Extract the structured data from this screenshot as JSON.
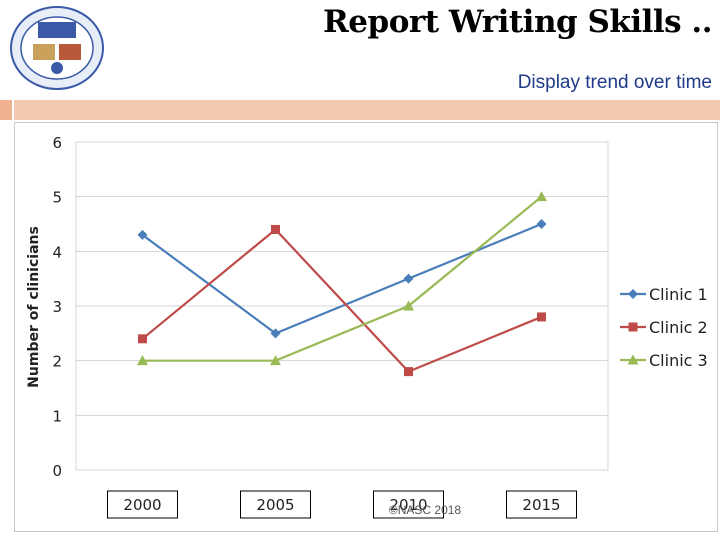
{
  "slide": {
    "title": "Report Writing Skills ..",
    "subtitle": "Display trend over time",
    "copyright": "©NASC 2018"
  },
  "colors": {
    "accent_bar": "#f3c9b0",
    "subtitle": "#1f3a8a"
  },
  "chart_data": {
    "type": "line",
    "categories": [
      "2000",
      "2005",
      "2010",
      "2015"
    ],
    "ylabel": "Number of clinicians",
    "xlabel": "",
    "ylim": [
      0,
      6
    ],
    "yticks": [
      0,
      1,
      2,
      3,
      4,
      5,
      6
    ],
    "grid": "horizontal",
    "legend": "right",
    "series": [
      {
        "name": "Clinic 1",
        "values": [
          4.3,
          2.5,
          3.5,
          4.5
        ],
        "color": "#4a7ebb",
        "marker": "diamond"
      },
      {
        "name": "Clinic 2",
        "values": [
          2.4,
          4.4,
          1.8,
          2.8
        ],
        "color": "#be4b48",
        "marker": "square"
      },
      {
        "name": "Clinic 3",
        "values": [
          2.0,
          2.0,
          3.0,
          5.0
        ],
        "color": "#98b954",
        "marker": "triangle"
      }
    ]
  }
}
